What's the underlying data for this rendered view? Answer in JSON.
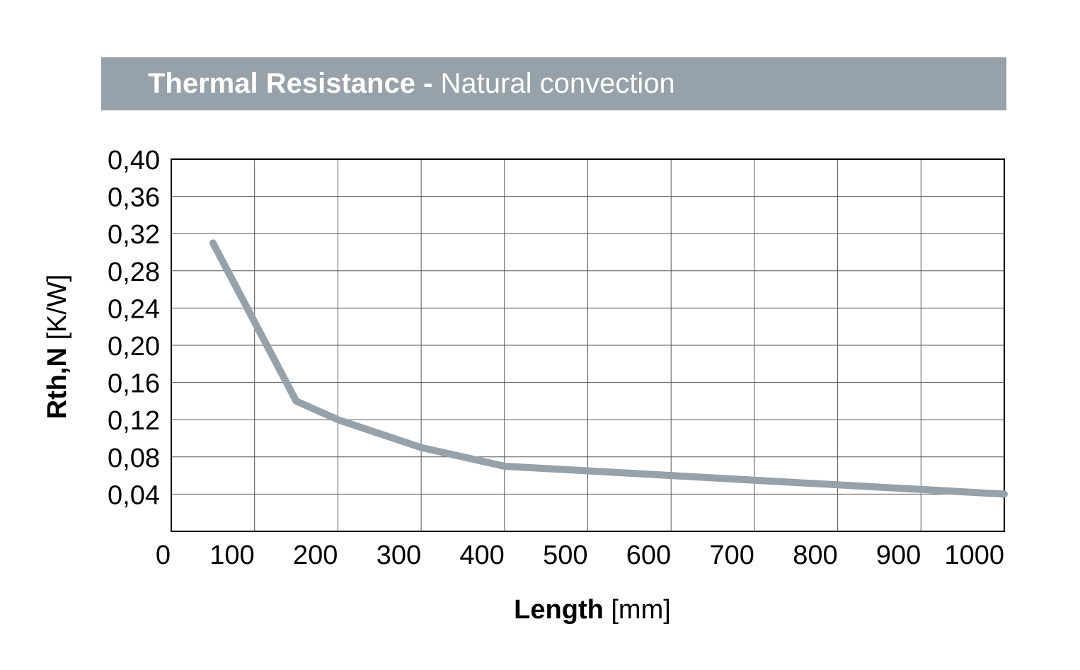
{
  "chart_data": {
    "type": "line",
    "title_bold": "Thermal Resistance -",
    "title_regular": "Natural convection",
    "xlabel_bold": "Length",
    "xlabel_unit": "[mm]",
    "ylabel_bold": "Rth,N",
    "ylabel_unit": "[K/W]",
    "xlim": [
      0,
      1000
    ],
    "ylim": [
      0,
      0.4
    ],
    "x_ticks": [
      0,
      100,
      200,
      300,
      400,
      500,
      600,
      700,
      800,
      900,
      1000
    ],
    "x_tick_labels": [
      "0",
      "100",
      "200",
      "300",
      "400",
      "500",
      "600",
      "700",
      "800",
      "900",
      "1000"
    ],
    "y_ticks": [
      0.04,
      0.08,
      0.12,
      0.16,
      0.2,
      0.24,
      0.28,
      0.32,
      0.36,
      0.4
    ],
    "y_tick_labels": [
      "0,04",
      "0,08",
      "0,12",
      "0,16",
      "0,20",
      "0,24",
      "0,28",
      "0,32",
      "0,36",
      "0,40"
    ],
    "grid": true,
    "series": [
      {
        "x": [
          50,
          150,
          200,
          300,
          400,
          500,
          600,
          700,
          800,
          900,
          1000
        ],
        "y": [
          0.31,
          0.14,
          0.12,
          0.09,
          0.07,
          0.065,
          0.06,
          0.055,
          0.05,
          0.045,
          0.04
        ],
        "color": "#96a1a9"
      }
    ]
  }
}
